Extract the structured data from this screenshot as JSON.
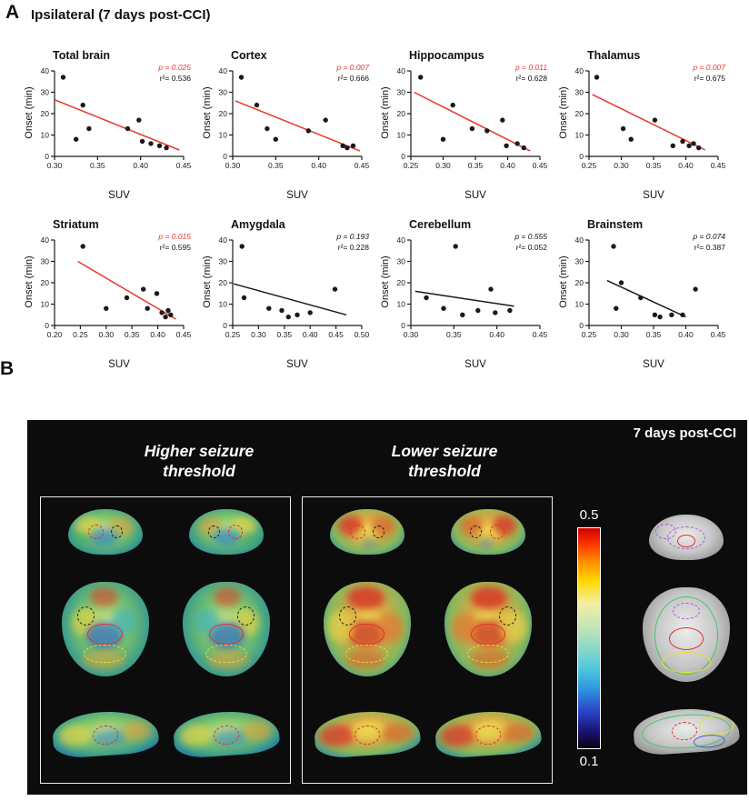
{
  "figure": {
    "panel_a_label": "A",
    "panel_a_title": "Ipsilateral (7 days post-CCI)",
    "panel_b_label": "B",
    "panel_b_corner_label": "7 days post-CCI",
    "group_titles": [
      {
        "line1": "Higher seizure",
        "line2": "threshold"
      },
      {
        "line1": "Lower seizure",
        "line2": "threshold"
      }
    ],
    "colorbar": {
      "top_label": "0.5",
      "bottom_label": "0.1"
    },
    "accent_red": "#e8372c"
  },
  "chart_data": [
    {
      "type": "scatter",
      "title": "Total brain",
      "xlabel": "SUV",
      "ylabel": "Onset (min)",
      "p_label": "p = 0.025",
      "r2_label": "r²= 0.536",
      "significant": true,
      "xlim": [
        0.3,
        0.45
      ],
      "ylim": [
        0,
        40
      ],
      "xticks": [
        "0.30",
        "0.35",
        "0.40",
        "0.45"
      ],
      "yticks": [
        0,
        10,
        20,
        30,
        40
      ],
      "points": [
        [
          0.31,
          37
        ],
        [
          0.325,
          8
        ],
        [
          0.333,
          24
        ],
        [
          0.34,
          13
        ],
        [
          0.385,
          13
        ],
        [
          0.398,
          17
        ],
        [
          0.402,
          7
        ],
        [
          0.412,
          6
        ],
        [
          0.422,
          5
        ],
        [
          0.43,
          4
        ]
      ],
      "fit": [
        0.3,
        26.5,
        0.445,
        3
      ]
    },
    {
      "type": "scatter",
      "title": "Cortex",
      "xlabel": "SUV",
      "ylabel": "Onset (min)",
      "p_label": "p = 0.007",
      "r2_label": "r²= 0.666",
      "significant": true,
      "xlim": [
        0.3,
        0.45
      ],
      "ylim": [
        0,
        40
      ],
      "xticks": [
        "0.30",
        "0.35",
        "0.40",
        "0.45"
      ],
      "yticks": [
        0,
        10,
        20,
        30,
        40
      ],
      "points": [
        [
          0.31,
          37
        ],
        [
          0.328,
          24
        ],
        [
          0.34,
          13
        ],
        [
          0.35,
          8
        ],
        [
          0.388,
          12
        ],
        [
          0.408,
          17
        ],
        [
          0.428,
          5
        ],
        [
          0.433,
          4
        ],
        [
          0.44,
          5
        ]
      ],
      "fit": [
        0.303,
        26,
        0.448,
        2.5
      ]
    },
    {
      "type": "scatter",
      "title": "Hippocampus",
      "xlabel": "SUV",
      "ylabel": "Onset (min)",
      "p_label": "p = 0.011",
      "r2_label": "r²= 0.628",
      "significant": true,
      "xlim": [
        0.25,
        0.45
      ],
      "ylim": [
        0,
        40
      ],
      "xticks": [
        "0.25",
        "0.30",
        "0.35",
        "0.40",
        "0.45"
      ],
      "yticks": [
        0,
        10,
        20,
        30,
        40
      ],
      "points": [
        [
          0.265,
          37
        ],
        [
          0.3,
          8
        ],
        [
          0.315,
          24
        ],
        [
          0.345,
          13
        ],
        [
          0.368,
          12
        ],
        [
          0.392,
          17
        ],
        [
          0.398,
          5
        ],
        [
          0.415,
          6
        ],
        [
          0.425,
          4
        ]
      ],
      "fit": [
        0.255,
        30,
        0.435,
        2.5
      ]
    },
    {
      "type": "scatter",
      "title": "Thalamus",
      "xlabel": "SUV",
      "ylabel": "Onset (min)",
      "p_label": "p = 0.007",
      "r2_label": "r²= 0.675",
      "significant": true,
      "xlim": [
        0.25,
        0.45
      ],
      "ylim": [
        0,
        40
      ],
      "xticks": [
        "0.25",
        "0.30",
        "0.35",
        "0.40",
        "0.45"
      ],
      "yticks": [
        0,
        10,
        20,
        30,
        40
      ],
      "points": [
        [
          0.262,
          37
        ],
        [
          0.303,
          13
        ],
        [
          0.315,
          8
        ],
        [
          0.352,
          17
        ],
        [
          0.38,
          5
        ],
        [
          0.395,
          7
        ],
        [
          0.405,
          5
        ],
        [
          0.412,
          6
        ],
        [
          0.42,
          4
        ]
      ],
      "fit": [
        0.255,
        29,
        0.43,
        3
      ]
    },
    {
      "type": "scatter",
      "title": "Striatum",
      "xlabel": "SUV",
      "ylabel": "Onset (min)",
      "p_label": "p = 0.015",
      "r2_label": "r²= 0.595",
      "significant": true,
      "xlim": [
        0.2,
        0.45
      ],
      "ylim": [
        0,
        40
      ],
      "xticks": [
        "0.20",
        "0.25",
        "0.30",
        "0.35",
        "0.40",
        "0.45"
      ],
      "yticks": [
        0,
        10,
        20,
        30,
        40
      ],
      "points": [
        [
          0.255,
          37
        ],
        [
          0.3,
          8
        ],
        [
          0.34,
          13
        ],
        [
          0.372,
          17
        ],
        [
          0.38,
          8
        ],
        [
          0.398,
          15
        ],
        [
          0.408,
          6
        ],
        [
          0.415,
          4
        ],
        [
          0.42,
          7
        ],
        [
          0.425,
          5
        ]
      ],
      "fit": [
        0.245,
        30,
        0.435,
        3
      ]
    },
    {
      "type": "scatter",
      "title": "Amygdala",
      "xlabel": "SUV",
      "ylabel": "Onset (min)",
      "p_label": "p = 0.193",
      "r2_label": "r²= 0.228",
      "significant": false,
      "xlim": [
        0.25,
        0.5
      ],
      "ylim": [
        0,
        40
      ],
      "xticks": [
        "0.25",
        "0.30",
        "0.35",
        "0.40",
        "0.45",
        "0.50"
      ],
      "yticks": [
        0,
        10,
        20,
        30,
        40
      ],
      "points": [
        [
          0.268,
          37
        ],
        [
          0.272,
          13
        ],
        [
          0.32,
          8
        ],
        [
          0.345,
          7
        ],
        [
          0.358,
          4
        ],
        [
          0.375,
          5
        ],
        [
          0.4,
          6
        ],
        [
          0.448,
          17
        ]
      ],
      "fit": [
        0.252,
        19.5,
        0.47,
        5
      ]
    },
    {
      "type": "scatter",
      "title": "Cerebellum",
      "xlabel": "SUV",
      "ylabel": "Onset (min)",
      "p_label": "p = 0.555",
      "r2_label": "r²= 0.052",
      "significant": false,
      "xlim": [
        0.3,
        0.45
      ],
      "ylim": [
        0,
        40
      ],
      "xticks": [
        "0.30",
        "0.35",
        "0.40",
        "0.45"
      ],
      "yticks": [
        0,
        10,
        20,
        30,
        40
      ],
      "points": [
        [
          0.318,
          13
        ],
        [
          0.338,
          8
        ],
        [
          0.352,
          37
        ],
        [
          0.36,
          5
        ],
        [
          0.378,
          7
        ],
        [
          0.393,
          17
        ],
        [
          0.398,
          6
        ],
        [
          0.415,
          7
        ]
      ],
      "fit": [
        0.305,
        16,
        0.42,
        9
      ]
    },
    {
      "type": "scatter",
      "title": "Brainstem",
      "xlabel": "SUV",
      "ylabel": "Onset (min)",
      "p_label": "p = 0.074",
      "r2_label": "r²= 0.387",
      "significant": false,
      "xlim": [
        0.25,
        0.45
      ],
      "ylim": [
        0,
        40
      ],
      "xticks": [
        "0.25",
        "0.30",
        "0.35",
        "0.40",
        "0.45"
      ],
      "yticks": [
        0,
        10,
        20,
        30,
        40
      ],
      "points": [
        [
          0.288,
          37
        ],
        [
          0.292,
          8
        ],
        [
          0.3,
          20
        ],
        [
          0.33,
          13
        ],
        [
          0.352,
          5
        ],
        [
          0.36,
          4
        ],
        [
          0.378,
          5
        ],
        [
          0.395,
          5
        ],
        [
          0.415,
          17
        ]
      ],
      "fit": [
        0.278,
        21,
        0.4,
        4
      ]
    }
  ]
}
